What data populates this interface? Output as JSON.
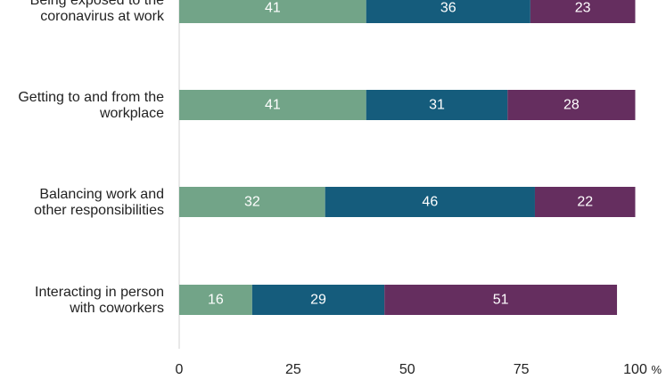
{
  "chart_data": {
    "type": "bar",
    "orientation": "horizontal",
    "stacked": true,
    "categories": [
      [
        "Being exposed to the",
        "coronavirus at work"
      ],
      [
        "Getting to and from the",
        "workplace"
      ],
      [
        "Balancing work and",
        "other responsibilities"
      ],
      [
        "Interacting in person",
        "with coworkers"
      ]
    ],
    "series": [
      {
        "values": [
          41,
          41,
          32,
          16
        ],
        "color": "#72a488"
      },
      {
        "values": [
          36,
          31,
          46,
          29
        ],
        "color": "#155c7c"
      },
      {
        "values": [
          23,
          28,
          22,
          51
        ],
        "color": "#652e5f"
      }
    ],
    "xlim": [
      0,
      100
    ],
    "xticks": [
      "0",
      "25",
      "50",
      "75",
      "100"
    ],
    "unit": "%",
    "grid": false,
    "legend": "none"
  }
}
